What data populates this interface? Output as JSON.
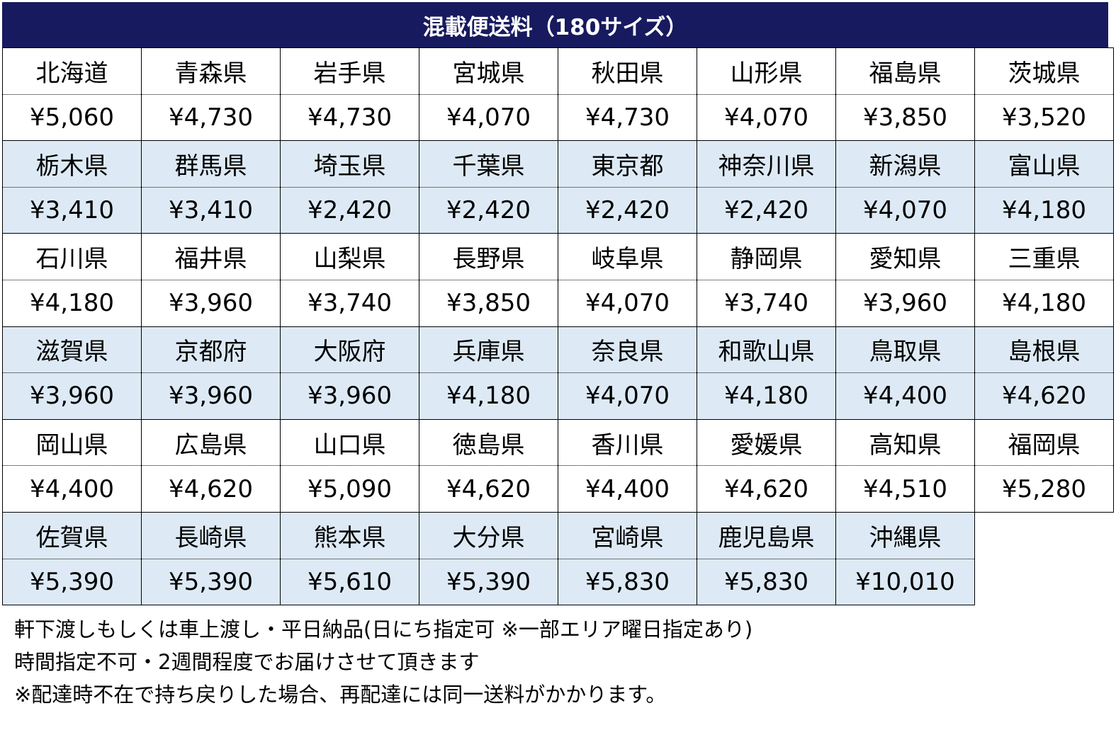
{
  "title": "混載便送料（180サイズ）",
  "rows": [
    {
      "names": [
        "北海道",
        "青森県",
        "岩手県",
        "宮城県",
        "秋田県",
        "山形県",
        "福島県",
        "茨城県"
      ],
      "prices": [
        "¥5,060",
        "¥4,730",
        "¥4,730",
        "¥4,070",
        "¥4,730",
        "¥4,070",
        "¥3,850",
        "¥3,520"
      ]
    },
    {
      "names": [
        "栃木県",
        "群馬県",
        "埼玉県",
        "千葉県",
        "東京都",
        "神奈川県",
        "新潟県",
        "富山県"
      ],
      "prices": [
        "¥3,410",
        "¥3,410",
        "¥2,420",
        "¥2,420",
        "¥2,420",
        "¥2,420",
        "¥4,070",
        "¥4,180"
      ]
    },
    {
      "names": [
        "石川県",
        "福井県",
        "山梨県",
        "長野県",
        "岐阜県",
        "静岡県",
        "愛知県",
        "三重県"
      ],
      "prices": [
        "¥4,180",
        "¥3,960",
        "¥3,740",
        "¥3,850",
        "¥4,070",
        "¥3,740",
        "¥3,960",
        "¥4,180"
      ]
    },
    {
      "names": [
        "滋賀県",
        "京都府",
        "大阪府",
        "兵庫県",
        "奈良県",
        "和歌山県",
        "鳥取県",
        "島根県"
      ],
      "prices": [
        "¥3,960",
        "¥3,960",
        "¥3,960",
        "¥4,180",
        "¥4,070",
        "¥4,180",
        "¥4,400",
        "¥4,620"
      ]
    },
    {
      "names": [
        "岡山県",
        "広島県",
        "山口県",
        "徳島県",
        "香川県",
        "愛媛県",
        "高知県",
        "福岡県"
      ],
      "prices": [
        "¥4,400",
        "¥4,620",
        "¥5,090",
        "¥4,620",
        "¥4,400",
        "¥4,620",
        "¥4,510",
        "¥5,280"
      ]
    },
    {
      "names": [
        "佐賀県",
        "長崎県",
        "熊本県",
        "大分県",
        "宮崎県",
        "鹿児島県",
        "沖縄県"
      ],
      "prices": [
        "¥5,390",
        "¥5,390",
        "¥5,610",
        "¥5,390",
        "¥5,830",
        "¥5,830",
        "¥10,010"
      ]
    }
  ],
  "notes": [
    "軒下渡しもしくは車上渡し・平日納品(日にち指定可 ※一部エリア曜日指定あり)",
    "時間指定不可・2週間程度でお届けさせて頂きます",
    "※配達時不在で持ち戻りした場合、再配達には同一送料がかかります。"
  ],
  "colors": {
    "header": "#171a5e",
    "band": "#ddeaf6"
  }
}
